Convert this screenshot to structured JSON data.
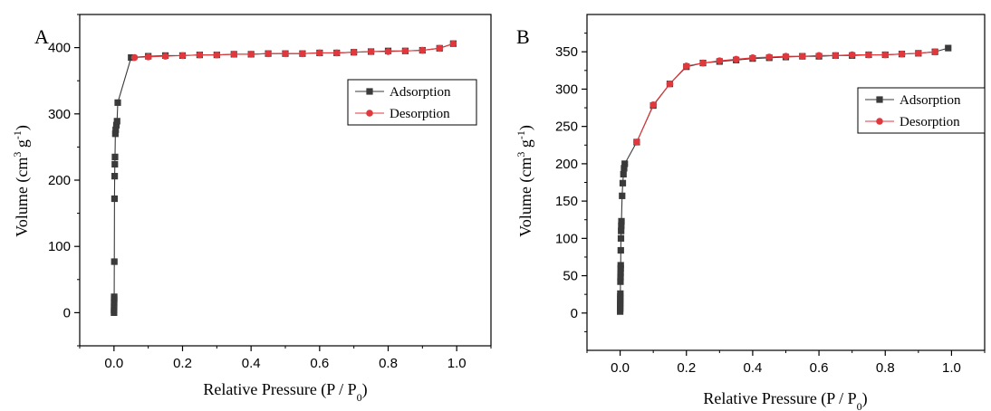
{
  "chart_data": [
    {
      "type": "scatter",
      "panel_label": "A",
      "xlabel": "Relative Pressure (P / P",
      "xlabel_sub": "0",
      "xlabel_end": ")",
      "ylabel_main": "Volume (cm",
      "ylabel_sup1": "3",
      "ylabel_mid": " g",
      "ylabel_sup2": "-1",
      "ylabel_end": ")",
      "xlim": [
        -0.1,
        1.1
      ],
      "ylim": [
        -50,
        450
      ],
      "xticks": [
        0.0,
        0.2,
        0.4,
        0.6,
        0.8,
        1.0
      ],
      "xtick_labels": [
        "0.0",
        "0.2",
        "0.4",
        "0.6",
        "0.8",
        "1.0"
      ],
      "yticks": [
        0,
        100,
        200,
        300,
        400
      ],
      "ytick_labels": [
        "0",
        "100",
        "200",
        "300",
        "400"
      ],
      "legend": {
        "position": "right",
        "entries": [
          "Adsorption",
          "Desorption"
        ]
      },
      "series": [
        {
          "name": "Adsorption",
          "color": "#3a3a3a",
          "marker": "square",
          "points": [
            [
              0.0001,
              0
            ],
            [
              0.0002,
              4
            ],
            [
              0.0003,
              9
            ],
            [
              0.0004,
              15
            ],
            [
              0.0005,
              20
            ],
            [
              0.0006,
              24
            ],
            [
              0.001,
              77
            ],
            [
              0.0015,
              172
            ],
            [
              0.002,
              206
            ],
            [
              0.0025,
              224
            ],
            [
              0.003,
              235
            ],
            [
              0.004,
              270
            ],
            [
              0.005,
              276
            ],
            [
              0.007,
              283
            ],
            [
              0.009,
              289
            ],
            [
              0.011,
              317
            ],
            [
              0.05,
              385
            ],
            [
              0.1,
              387
            ],
            [
              0.15,
              388
            ],
            [
              0.2,
              388
            ],
            [
              0.25,
              389
            ],
            [
              0.3,
              389
            ],
            [
              0.35,
              390
            ],
            [
              0.4,
              390
            ],
            [
              0.45,
              391
            ],
            [
              0.5,
              391
            ],
            [
              0.55,
              391
            ],
            [
              0.6,
              392
            ],
            [
              0.65,
              392
            ],
            [
              0.7,
              393
            ],
            [
              0.75,
              394
            ],
            [
              0.8,
              395
            ],
            [
              0.85,
              395
            ],
            [
              0.9,
              396
            ],
            [
              0.95,
              399
            ],
            [
              0.99,
              406
            ]
          ]
        },
        {
          "name": "Desorption",
          "color": "#e0383c",
          "marker": "circle",
          "points": [
            [
              0.99,
              406
            ],
            [
              0.95,
              399
            ],
            [
              0.9,
              396
            ],
            [
              0.85,
              395
            ],
            [
              0.8,
              394
            ],
            [
              0.75,
              394
            ],
            [
              0.7,
              393
            ],
            [
              0.65,
              392
            ],
            [
              0.6,
              392
            ],
            [
              0.55,
              391
            ],
            [
              0.5,
              391
            ],
            [
              0.45,
              391
            ],
            [
              0.4,
              390
            ],
            [
              0.35,
              390
            ],
            [
              0.3,
              389
            ],
            [
              0.25,
              389
            ],
            [
              0.2,
              388
            ],
            [
              0.15,
              387
            ],
            [
              0.1,
              386
            ],
            [
              0.06,
              385
            ]
          ]
        }
      ]
    },
    {
      "type": "scatter",
      "panel_label": "B",
      "xlabel": "Relative Pressure (P / P",
      "xlabel_sub": "0",
      "xlabel_end": ")",
      "ylabel_main": "Volume (cm",
      "ylabel_sup1": "3",
      "ylabel_mid": " g",
      "ylabel_sup2": "-1",
      "ylabel_end": ")",
      "xlim": [
        -0.1,
        1.1
      ],
      "ylim": [
        -50,
        400
      ],
      "xticks": [
        0.0,
        0.2,
        0.4,
        0.6,
        0.8,
        1.0
      ],
      "xtick_labels": [
        "0.0",
        "0.2",
        "0.4",
        "0.6",
        "0.8",
        "1.0"
      ],
      "yticks": [
        0,
        50,
        100,
        150,
        200,
        250,
        300,
        350
      ],
      "ytick_labels": [
        "0",
        "50",
        "100",
        "150",
        "200",
        "250",
        "300",
        "350"
      ],
      "legend": {
        "position": "right",
        "entries": [
          "Adsorption",
          "Desorption"
        ]
      },
      "series": [
        {
          "name": "Adsorption",
          "color": "#3a3a3a",
          "marker": "square",
          "points": [
            [
              0.0001,
              2
            ],
            [
              0.0002,
              6
            ],
            [
              0.0003,
              10
            ],
            [
              0.0004,
              14
            ],
            [
              0.0005,
              18
            ],
            [
              0.0006,
              22
            ],
            [
              0.0007,
              26
            ],
            [
              0.001,
              42
            ],
            [
              0.0012,
              48
            ],
            [
              0.0014,
              54
            ],
            [
              0.0016,
              60
            ],
            [
              0.0018,
              64
            ],
            [
              0.002,
              84
            ],
            [
              0.0025,
              100
            ],
            [
              0.003,
              110
            ],
            [
              0.0035,
              117
            ],
            [
              0.004,
              123
            ],
            [
              0.006,
              157
            ],
            [
              0.008,
              174
            ],
            [
              0.01,
              186
            ],
            [
              0.012,
              194
            ],
            [
              0.014,
              200
            ],
            [
              0.05,
              229
            ],
            [
              0.1,
              278
            ],
            [
              0.15,
              307
            ],
            [
              0.2,
              330
            ],
            [
              0.25,
              335
            ],
            [
              0.3,
              337
            ],
            [
              0.35,
              339
            ],
            [
              0.4,
              341
            ],
            [
              0.45,
              342
            ],
            [
              0.5,
              343
            ],
            [
              0.55,
              344
            ],
            [
              0.6,
              344
            ],
            [
              0.65,
              345
            ],
            [
              0.7,
              345
            ],
            [
              0.75,
              346
            ],
            [
              0.8,
              346
            ],
            [
              0.85,
              347
            ],
            [
              0.9,
              348
            ],
            [
              0.95,
              350
            ],
            [
              0.99,
              355
            ]
          ]
        },
        {
          "name": "Desorption",
          "color": "#e0383c",
          "marker": "circle",
          "points": [
            [
              0.95,
              350
            ],
            [
              0.9,
              348
            ],
            [
              0.85,
              347
            ],
            [
              0.8,
              346
            ],
            [
              0.75,
              346
            ],
            [
              0.7,
              346
            ],
            [
              0.65,
              345
            ],
            [
              0.6,
              345
            ],
            [
              0.55,
              344
            ],
            [
              0.5,
              344
            ],
            [
              0.45,
              343
            ],
            [
              0.4,
              342
            ],
            [
              0.35,
              340
            ],
            [
              0.3,
              338
            ],
            [
              0.25,
              335
            ],
            [
              0.2,
              331
            ],
            [
              0.15,
              307
            ],
            [
              0.1,
              279
            ],
            [
              0.05,
              229
            ]
          ]
        }
      ]
    }
  ]
}
